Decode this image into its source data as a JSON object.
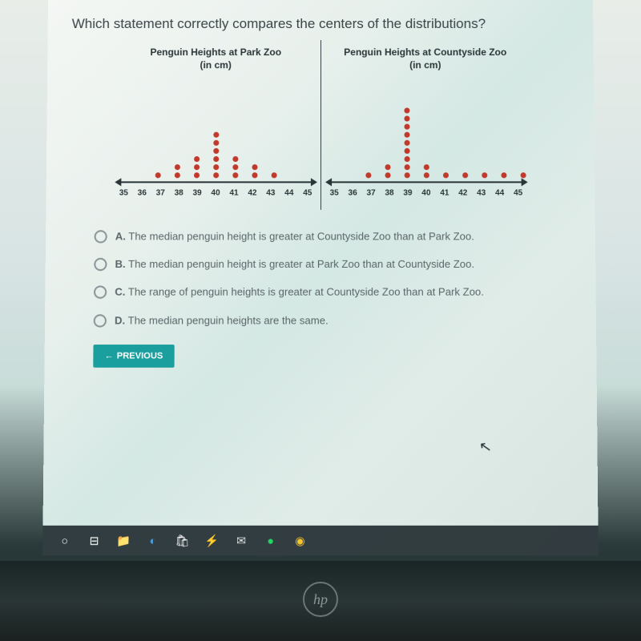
{
  "question": "Which statement correctly compares the centers of the distributions?",
  "chartA": {
    "title_line1": "Penguin Heights at Park Zoo",
    "title_line2": "(in cm)",
    "ticks": [
      "35",
      "36",
      "37",
      "38",
      "39",
      "40",
      "41",
      "42",
      "43",
      "44",
      "45"
    ],
    "counts": [
      0,
      0,
      1,
      2,
      3,
      6,
      3,
      2,
      1,
      0,
      0
    ],
    "dot_color": "#c0392b",
    "axis_color": "#2a3538"
  },
  "chartB": {
    "title_line1": "Penguin Heights at Countyside Zoo",
    "title_line2": "(in cm)",
    "ticks": [
      "35",
      "36",
      "37",
      "38",
      "39",
      "40",
      "41",
      "42",
      "43",
      "44",
      "45"
    ],
    "counts": [
      0,
      0,
      1,
      2,
      9,
      2,
      1,
      1,
      1,
      1,
      1
    ],
    "dot_color": "#c0392b",
    "axis_color": "#2a3538"
  },
  "options": {
    "A": "The median penguin height is greater at Countyside Zoo than at Park Zoo.",
    "B": "The median penguin height is greater at Park Zoo than at Countyside Zoo.",
    "C": "The range of penguin heights is greater at Countyside Zoo than at Park Zoo.",
    "D": "The median penguin heights are the same."
  },
  "previous_label": "PREVIOUS",
  "hp_label": "hp",
  "colors": {
    "button_bg": "#1b9e9e",
    "text_primary": "#3a4548",
    "text_secondary": "#5a6568"
  },
  "taskbar_icons": [
    {
      "name": "cortana",
      "glyph": "○",
      "color": "#ffffff"
    },
    {
      "name": "task-view",
      "glyph": "⊟",
      "color": "#ffffff"
    },
    {
      "name": "file-explorer",
      "glyph": "📁",
      "color": "#f4c430"
    },
    {
      "name": "edge",
      "glyph": "◐",
      "color": "#4aa0e0"
    },
    {
      "name": "store",
      "glyph": "🛍",
      "color": "#ffffff"
    },
    {
      "name": "app",
      "glyph": "⚡",
      "color": "#f0a020"
    },
    {
      "name": "mail",
      "glyph": "✉",
      "color": "#e0e0e0"
    },
    {
      "name": "spotify",
      "glyph": "●",
      "color": "#1ed760"
    },
    {
      "name": "chrome",
      "glyph": "◉",
      "color": "#f4c430"
    }
  ]
}
